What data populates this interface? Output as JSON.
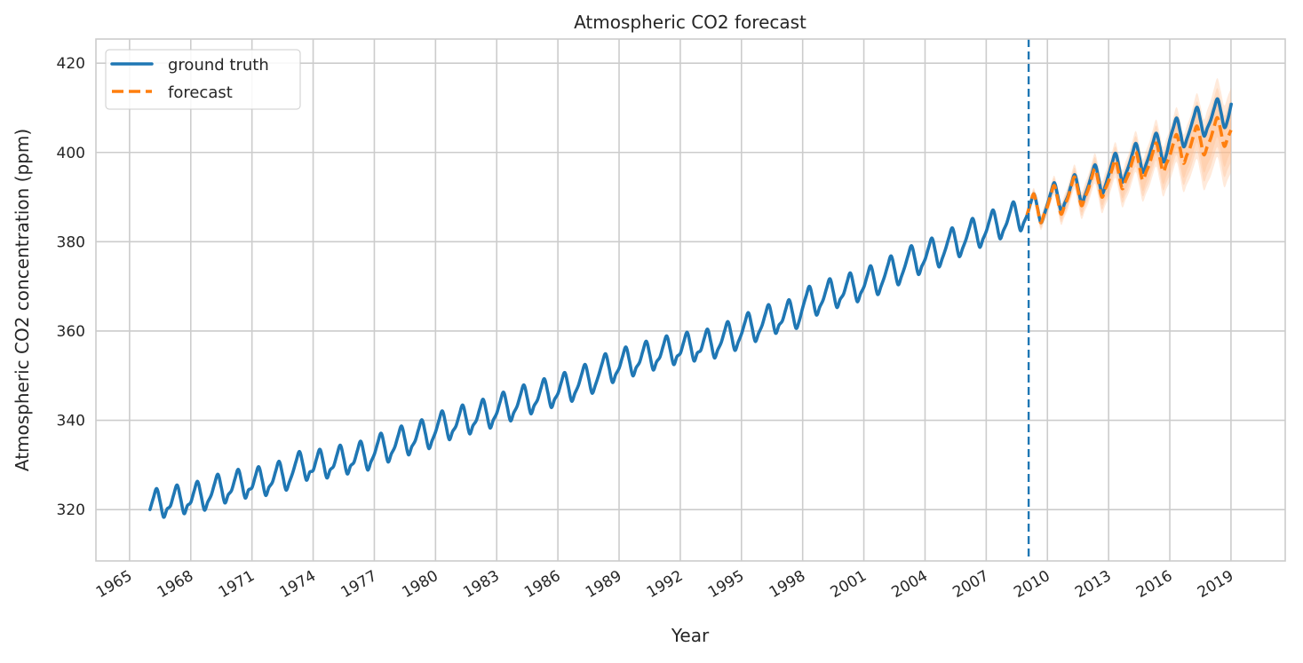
{
  "chart_data": {
    "type": "line",
    "title": "Atmospheric CO2 forecast",
    "xlabel": "Year",
    "ylabel": "Atmospheric CO2 concentration (ppm)",
    "xlim": [
      1963.35,
      2021.66
    ],
    "ylim": [
      308.5,
      425.4
    ],
    "xticks": [
      1965,
      1968,
      1971,
      1974,
      1977,
      1980,
      1983,
      1986,
      1989,
      1992,
      1995,
      1998,
      2001,
      2004,
      2007,
      2010,
      2013,
      2016,
      2019
    ],
    "yticks": [
      320,
      340,
      360,
      380,
      400,
      420
    ],
    "grid": true,
    "legend_placement": "top-left",
    "colors": {
      "ground_truth": "#1f77b4",
      "forecast": "#ff7f0e",
      "band": "#ffbb88",
      "grid": "#cccccc",
      "forecast_start_line": "#1f77b4"
    },
    "forecast_start": 2009.08,
    "series": [
      {
        "name": "ground truth",
        "style": "solid",
        "x_start": 1966.0,
        "x_step_years": 0.1667,
        "values": [
          320.0,
          322.6,
          324.7,
          321.7,
          318.3,
          320.1,
          320.8,
          323.4,
          325.5,
          322.5,
          319.1,
          320.9,
          321.6,
          324.2,
          326.3,
          323.3,
          319.9,
          321.7,
          323.2,
          325.8,
          327.9,
          324.9,
          321.5,
          323.3,
          324.3,
          326.9,
          329.0,
          326.0,
          322.6,
          324.4,
          324.9,
          327.5,
          329.6,
          326.6,
          323.2,
          325.0,
          326.1,
          328.7,
          330.8,
          327.8,
          324.4,
          326.2,
          328.3,
          330.9,
          333.0,
          330.0,
          326.6,
          328.4,
          328.8,
          331.4,
          333.5,
          330.5,
          327.1,
          328.9,
          329.7,
          332.3,
          334.4,
          331.4,
          328.0,
          329.8,
          330.6,
          333.2,
          335.3,
          332.3,
          328.9,
          330.7,
          332.4,
          335.0,
          337.1,
          334.1,
          330.7,
          332.5,
          334.0,
          336.6,
          338.7,
          335.7,
          332.3,
          334.1,
          335.4,
          338.0,
          340.1,
          337.1,
          333.7,
          335.5,
          337.4,
          340.0,
          342.1,
          339.1,
          335.7,
          337.5,
          338.7,
          341.3,
          343.4,
          340.4,
          337.0,
          338.8,
          340.0,
          342.6,
          344.7,
          341.7,
          338.3,
          340.1,
          341.6,
          344.2,
          346.3,
          343.3,
          339.9,
          341.7,
          343.2,
          345.8,
          347.9,
          344.9,
          341.5,
          343.3,
          344.6,
          347.2,
          349.3,
          346.3,
          342.9,
          344.7,
          346.0,
          348.6,
          350.7,
          347.7,
          344.3,
          346.1,
          347.8,
          350.4,
          352.5,
          349.5,
          346.1,
          347.9,
          350.2,
          352.8,
          354.9,
          351.9,
          348.5,
          350.3,
          351.7,
          354.3,
          356.4,
          353.4,
          350.0,
          351.8,
          353.0,
          355.6,
          357.7,
          354.7,
          351.3,
          353.1,
          354.2,
          356.8,
          358.9,
          355.9,
          352.5,
          354.3,
          355.0,
          357.6,
          359.7,
          356.7,
          353.3,
          355.1,
          355.7,
          358.3,
          360.4,
          357.4,
          354.0,
          355.8,
          357.4,
          360.0,
          362.1,
          359.1,
          355.7,
          357.5,
          359.4,
          362.0,
          364.1,
          361.1,
          357.7,
          359.5,
          361.2,
          363.8,
          365.9,
          362.9,
          359.5,
          361.3,
          362.3,
          364.9,
          367.0,
          364.0,
          360.6,
          362.4,
          365.3,
          367.9,
          370.0,
          367.0,
          363.6,
          365.4,
          367.0,
          369.6,
          371.7,
          368.7,
          365.3,
          367.1,
          368.3,
          370.9,
          373.0,
          370.0,
          366.6,
          368.4,
          369.9,
          372.5,
          374.6,
          371.6,
          368.2,
          370.0,
          372.1,
          374.7,
          376.8,
          373.8,
          370.4,
          372.2,
          374.4,
          377.0,
          379.1,
          376.1,
          372.7,
          374.5,
          376.1,
          378.7,
          380.8,
          377.8,
          374.4,
          376.2,
          378.4,
          381.0,
          383.1,
          380.1,
          376.7,
          378.5,
          380.5,
          383.1,
          385.2,
          382.2,
          378.8,
          380.6,
          382.4,
          385.0,
          387.1,
          384.1,
          380.7,
          382.5,
          384.2,
          386.8,
          388.9,
          385.9,
          382.5,
          384.3,
          386.0,
          388.6,
          390.7,
          387.7,
          384.3,
          386.1,
          388.5,
          391.1,
          393.2,
          390.2,
          386.8,
          388.6,
          390.3,
          392.9,
          395.0,
          392.0,
          388.6,
          390.4,
          392.5,
          395.1,
          397.2,
          394.2,
          390.8,
          392.6,
          395.1,
          397.7,
          399.8,
          396.8,
          393.4,
          395.2,
          397.3,
          399.9,
          402.0,
          399.0,
          395.6,
          397.4,
          399.6,
          402.2,
          404.3,
          401.3,
          397.9,
          399.7,
          403.0,
          405.6,
          407.7,
          404.7,
          401.3,
          403.1,
          405.4,
          408.0,
          410.1,
          407.1,
          403.7,
          405.5,
          407.3,
          409.9,
          412.0,
          409.0,
          405.6,
          407.4,
          410.8
        ]
      },
      {
        "name": "forecast",
        "style": "dashed",
        "x_start": 2009.0,
        "x_step_years": 0.1667,
        "values": [
          386.0,
          388.6,
          390.7,
          387.7,
          384.3,
          386.1,
          387.9,
          390.5,
          392.6,
          389.6,
          386.2,
          388.0,
          389.8,
          392.4,
          394.5,
          391.5,
          388.1,
          389.9,
          391.7,
          394.3,
          396.4,
          393.4,
          390.0,
          391.8,
          393.6,
          396.2,
          398.3,
          395.3,
          391.9,
          393.7,
          395.5,
          398.1,
          400.2,
          397.2,
          393.8,
          395.6,
          397.4,
          400.0,
          402.1,
          399.1,
          395.7,
          397.5,
          399.3,
          401.9,
          404.0,
          401.0,
          397.6,
          399.4,
          401.2,
          403.8,
          405.9,
          402.9,
          399.5,
          401.3,
          403.1,
          405.7,
          407.8,
          404.8,
          401.4,
          403.2,
          405.0
        ],
        "uncertainty_years": [
          2009,
          2010,
          2011,
          2012,
          2013,
          2014,
          2015,
          2016,
          2017,
          2018,
          2019
        ],
        "uncertainty_halfwidth": [
          1.0,
          2.0,
          2.6,
          3.2,
          3.8,
          4.4,
          5.0,
          5.8,
          6.8,
          8.5,
          9.5
        ]
      }
    ]
  }
}
